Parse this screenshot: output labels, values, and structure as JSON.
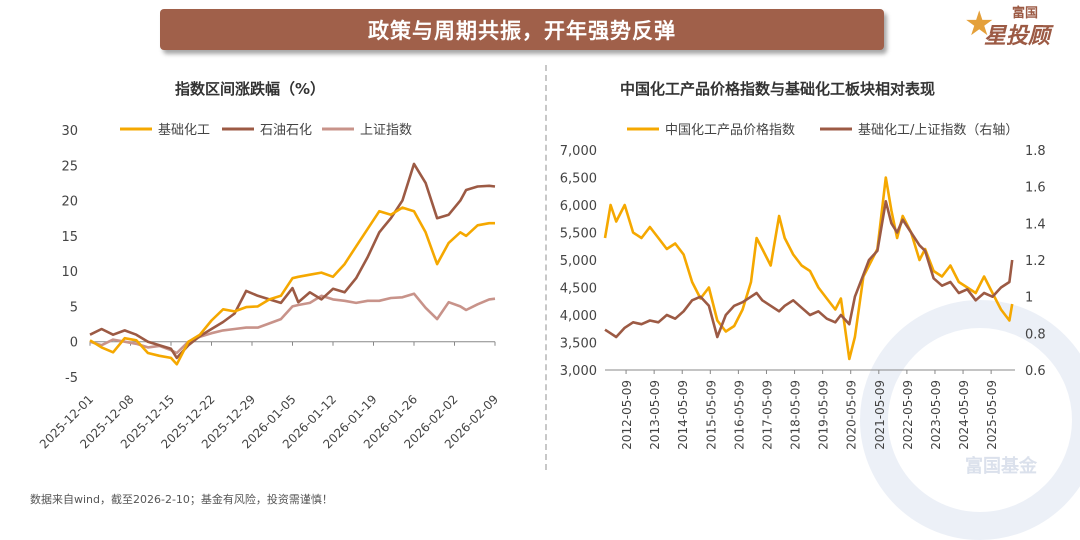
{
  "banner": {
    "title": "政策与周期共振，开年强势反弹"
  },
  "logo": {
    "top_text": "富国",
    "main_text": "星投顾",
    "star": "★"
  },
  "watermark": {
    "text": "富国基金"
  },
  "footnote": "数据来自wind，截至2026-2-10；基金有风险，投资需谨慎！",
  "colors": {
    "orange": "#f5a800",
    "brown": "#9c5a44",
    "pink": "#c8938a",
    "banner": "#a0604a"
  },
  "chart_data": [
    {
      "type": "line",
      "title": "指数区间涨跌幅（%）",
      "ylim": [
        -5,
        30
      ],
      "yticks": [
        "30",
        "25",
        "20",
        "15",
        "10",
        "5",
        "0",
        "-5"
      ],
      "ytick_values": [
        30,
        25,
        20,
        15,
        10,
        5,
        0,
        -5
      ],
      "xtick_labels": [
        "2025-12-01",
        "2025-12-08",
        "2025-12-15",
        "2025-12-22",
        "2025-12-29",
        "2026-01-05",
        "2026-01-12",
        "2026-01-19",
        "2026-01-26",
        "2026-02-02",
        "2026-02-09"
      ],
      "xlim": [
        0,
        70
      ],
      "xtick_positions": [
        0,
        7,
        14,
        21,
        28,
        35,
        42,
        49,
        56,
        63,
        70
      ],
      "legend": [
        "基础化工",
        "石油石化",
        "上证指数"
      ],
      "series": [
        {
          "name": "基础化工",
          "color": "#f5a800",
          "x": [
            0,
            2,
            4,
            6,
            8,
            10,
            12,
            14,
            15,
            17,
            19,
            21,
            23,
            25,
            27,
            29,
            31,
            33,
            35,
            36,
            38,
            40,
            42,
            44,
            46,
            48,
            50,
            52,
            54,
            56,
            58,
            60,
            62,
            64,
            65,
            67,
            69,
            70
          ],
          "y": [
            0.2,
            -0.8,
            -1.5,
            0.5,
            0.2,
            -1.6,
            -2.0,
            -2.3,
            -3.2,
            0.0,
            1.0,
            3.0,
            4.6,
            4.3,
            4.9,
            5.0,
            6.0,
            6.5,
            9.0,
            9.2,
            9.5,
            9.8,
            9.2,
            11.0,
            13.5,
            16.0,
            18.5,
            18.0,
            19.0,
            18.5,
            15.5,
            11.0,
            14.0,
            15.5,
            15.0,
            16.5,
            16.8,
            16.8
          ]
        },
        {
          "name": "石油石化",
          "color": "#9c5a44",
          "x": [
            0,
            2,
            4,
            6,
            8,
            10,
            12,
            14,
            15,
            17,
            19,
            21,
            23,
            25,
            27,
            29,
            31,
            33,
            35,
            36,
            38,
            40,
            42,
            44,
            46,
            48,
            50,
            52,
            54,
            56,
            58,
            60,
            62,
            64,
            65,
            67,
            69,
            70
          ],
          "y": [
            1.0,
            1.8,
            1.0,
            1.6,
            1.0,
            0.0,
            -0.5,
            -1.0,
            -2.3,
            -0.5,
            0.8,
            1.8,
            2.8,
            4.0,
            7.2,
            6.5,
            6.0,
            5.5,
            7.6,
            5.6,
            7.0,
            6.0,
            7.5,
            7.0,
            9.0,
            12.0,
            15.5,
            17.5,
            20.0,
            25.2,
            22.5,
            17.5,
            18.0,
            20.0,
            21.5,
            22.0,
            22.1,
            22.0
          ]
        },
        {
          "name": "上证指数",
          "color": "#c8938a",
          "x": [
            0,
            2,
            4,
            6,
            8,
            10,
            12,
            14,
            15,
            17,
            19,
            21,
            23,
            25,
            27,
            29,
            31,
            33,
            35,
            36,
            38,
            40,
            42,
            44,
            46,
            48,
            50,
            52,
            54,
            56,
            58,
            60,
            62,
            64,
            65,
            67,
            69,
            70
          ],
          "y": [
            0.0,
            -0.5,
            0.3,
            0.0,
            -0.3,
            -0.8,
            -0.6,
            -1.2,
            -1.6,
            0.0,
            0.7,
            1.2,
            1.6,
            1.8,
            2.0,
            2.0,
            2.6,
            3.2,
            5.0,
            5.2,
            5.5,
            6.5,
            6.0,
            5.8,
            5.5,
            5.8,
            5.8,
            6.2,
            6.3,
            6.8,
            4.8,
            3.2,
            5.6,
            5.0,
            4.5,
            5.3,
            6.0,
            6.1
          ]
        }
      ]
    },
    {
      "type": "line",
      "title": "中国化工产品价格指数与基础化工板块相对表现",
      "ylim": [
        3000,
        7000
      ],
      "yticks": [
        "7,000",
        "6,500",
        "6,000",
        "5,500",
        "5,000",
        "4,500",
        "4,000",
        "3,500",
        "3,000"
      ],
      "ytick_values": [
        7000,
        6500,
        6000,
        5500,
        5000,
        4500,
        4000,
        3500,
        3000
      ],
      "y2lim": [
        0.6,
        1.8
      ],
      "y2ticks": [
        "1.8",
        "1.6",
        "1.4",
        "1.2",
        "1",
        "0.8",
        "0.6"
      ],
      "y2tick_values": [
        1.8,
        1.6,
        1.4,
        1.2,
        1.0,
        0.8,
        0.6
      ],
      "xtick_labels": [
        "2012-05-09",
        "2013-05-09",
        "2014-05-09",
        "2015-05-09",
        "2016-05-09",
        "2017-05-09",
        "2018-05-09",
        "2019-05-09",
        "2020-05-09",
        "2021-05-09",
        "2022-05-09",
        "2023-05-09",
        "2024-05-09",
        "2025-05-09"
      ],
      "xlim": [
        2011.6,
        2026.2
      ],
      "xtick_positions": [
        2012.35,
        2013.35,
        2014.35,
        2015.35,
        2016.35,
        2017.35,
        2018.35,
        2019.35,
        2020.35,
        2021.35,
        2022.35,
        2023.35,
        2024.35,
        2025.35
      ],
      "legend": [
        "中国化工产品价格指数",
        "基础化工/上证指数（右轴）"
      ],
      "series": [
        {
          "name": "中国化工产品价格指数",
          "color": "#f5a800",
          "axis": "left",
          "x": [
            2011.6,
            2011.8,
            2012.0,
            2012.3,
            2012.6,
            2012.9,
            2013.2,
            2013.5,
            2013.8,
            2014.1,
            2014.4,
            2014.7,
            2015.0,
            2015.3,
            2015.6,
            2015.9,
            2016.2,
            2016.5,
            2016.8,
            2017.0,
            2017.2,
            2017.5,
            2017.8,
            2018.0,
            2018.3,
            2018.6,
            2018.9,
            2019.2,
            2019.5,
            2019.8,
            2020.0,
            2020.3,
            2020.5,
            2020.8,
            2021.0,
            2021.3,
            2021.6,
            2021.8,
            2022.0,
            2022.2,
            2022.5,
            2022.8,
            2023.0,
            2023.3,
            2023.6,
            2023.9,
            2024.2,
            2024.5,
            2024.8,
            2025.1,
            2025.4,
            2025.7,
            2026.0,
            2026.1
          ],
          "y": [
            5400,
            6000,
            5700,
            6000,
            5500,
            5400,
            5600,
            5400,
            5200,
            5300,
            5100,
            4600,
            4300,
            4500,
            3900,
            3700,
            3800,
            4100,
            4600,
            5400,
            5200,
            4900,
            5800,
            5400,
            5100,
            4900,
            4800,
            4500,
            4300,
            4100,
            4300,
            3200,
            3600,
            4700,
            4900,
            5200,
            6500,
            5900,
            5400,
            5800,
            5500,
            5000,
            5200,
            4800,
            4700,
            4900,
            4600,
            4500,
            4400,
            4700,
            4400,
            4100,
            3900,
            4200
          ]
        },
        {
          "name": "基础化工/上证指数（右轴）",
          "color": "#9c5a44",
          "axis": "right",
          "x": [
            2011.6,
            2011.8,
            2012.0,
            2012.3,
            2012.6,
            2012.9,
            2013.2,
            2013.5,
            2013.8,
            2014.1,
            2014.4,
            2014.7,
            2015.0,
            2015.3,
            2015.6,
            2015.9,
            2016.2,
            2016.5,
            2016.8,
            2017.0,
            2017.2,
            2017.5,
            2017.8,
            2018.0,
            2018.3,
            2018.6,
            2018.9,
            2019.2,
            2019.5,
            2019.8,
            2020.0,
            2020.3,
            2020.5,
            2020.8,
            2021.0,
            2021.3,
            2021.6,
            2021.8,
            2022.0,
            2022.2,
            2022.5,
            2022.8,
            2023.0,
            2023.3,
            2023.6,
            2023.9,
            2024.2,
            2024.5,
            2024.8,
            2025.1,
            2025.4,
            2025.7,
            2026.0,
            2026.1
          ],
          "y": [
            0.82,
            0.8,
            0.78,
            0.83,
            0.86,
            0.85,
            0.87,
            0.86,
            0.9,
            0.88,
            0.92,
            0.98,
            1.0,
            0.95,
            0.78,
            0.9,
            0.95,
            0.97,
            1.0,
            1.02,
            0.98,
            0.95,
            0.92,
            0.95,
            0.98,
            0.94,
            0.9,
            0.92,
            0.88,
            0.86,
            0.9,
            0.85,
            1.0,
            1.12,
            1.2,
            1.25,
            1.52,
            1.4,
            1.35,
            1.42,
            1.35,
            1.28,
            1.25,
            1.1,
            1.06,
            1.08,
            1.02,
            1.04,
            0.98,
            1.02,
            1.0,
            1.05,
            1.08,
            1.2
          ]
        }
      ]
    }
  ]
}
